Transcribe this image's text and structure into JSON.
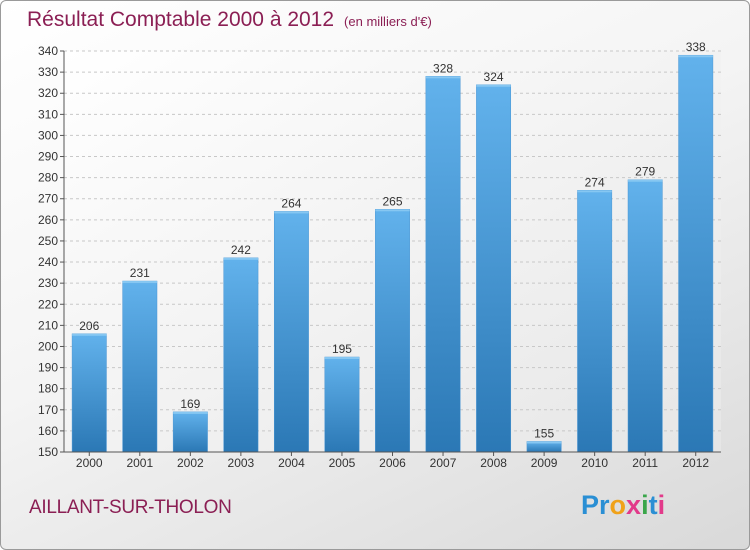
{
  "title": "Résultat Comptable 2000 à 2012",
  "unit": "(en milliers d'€)",
  "commune": "AILLANT-SUR-THOLON",
  "logo": {
    "letters": [
      "P",
      "r",
      "o",
      "x",
      "i",
      "t",
      "i"
    ],
    "colors": [
      "#2a8fd4",
      "#2a8fd4",
      "#f0a21a",
      "#e23a8a",
      "#3aa64a",
      "#2a8fd4",
      "#e23a8a"
    ]
  },
  "colors": {
    "bar_top": "#62b2ec",
    "bar_bottom": "#2b78b5",
    "title": "#8b1f54"
  },
  "chart_data": {
    "type": "bar",
    "title": "Résultat Comptable 2000 à 2012",
    "xlabel": "",
    "ylabel": "",
    "categories": [
      "2000",
      "2001",
      "2002",
      "2003",
      "2004",
      "2005",
      "2006",
      "2007",
      "2008",
      "2009",
      "2010",
      "2011",
      "2012"
    ],
    "values": [
      206,
      231,
      169,
      242,
      264,
      195,
      265,
      328,
      324,
      155,
      274,
      279,
      338
    ],
    "ylim": [
      150,
      340
    ],
    "yticks": [
      150,
      160,
      170,
      180,
      190,
      200,
      210,
      220,
      230,
      240,
      250,
      260,
      270,
      280,
      290,
      300,
      310,
      320,
      330,
      340
    ],
    "grid": true,
    "legend": "none"
  }
}
